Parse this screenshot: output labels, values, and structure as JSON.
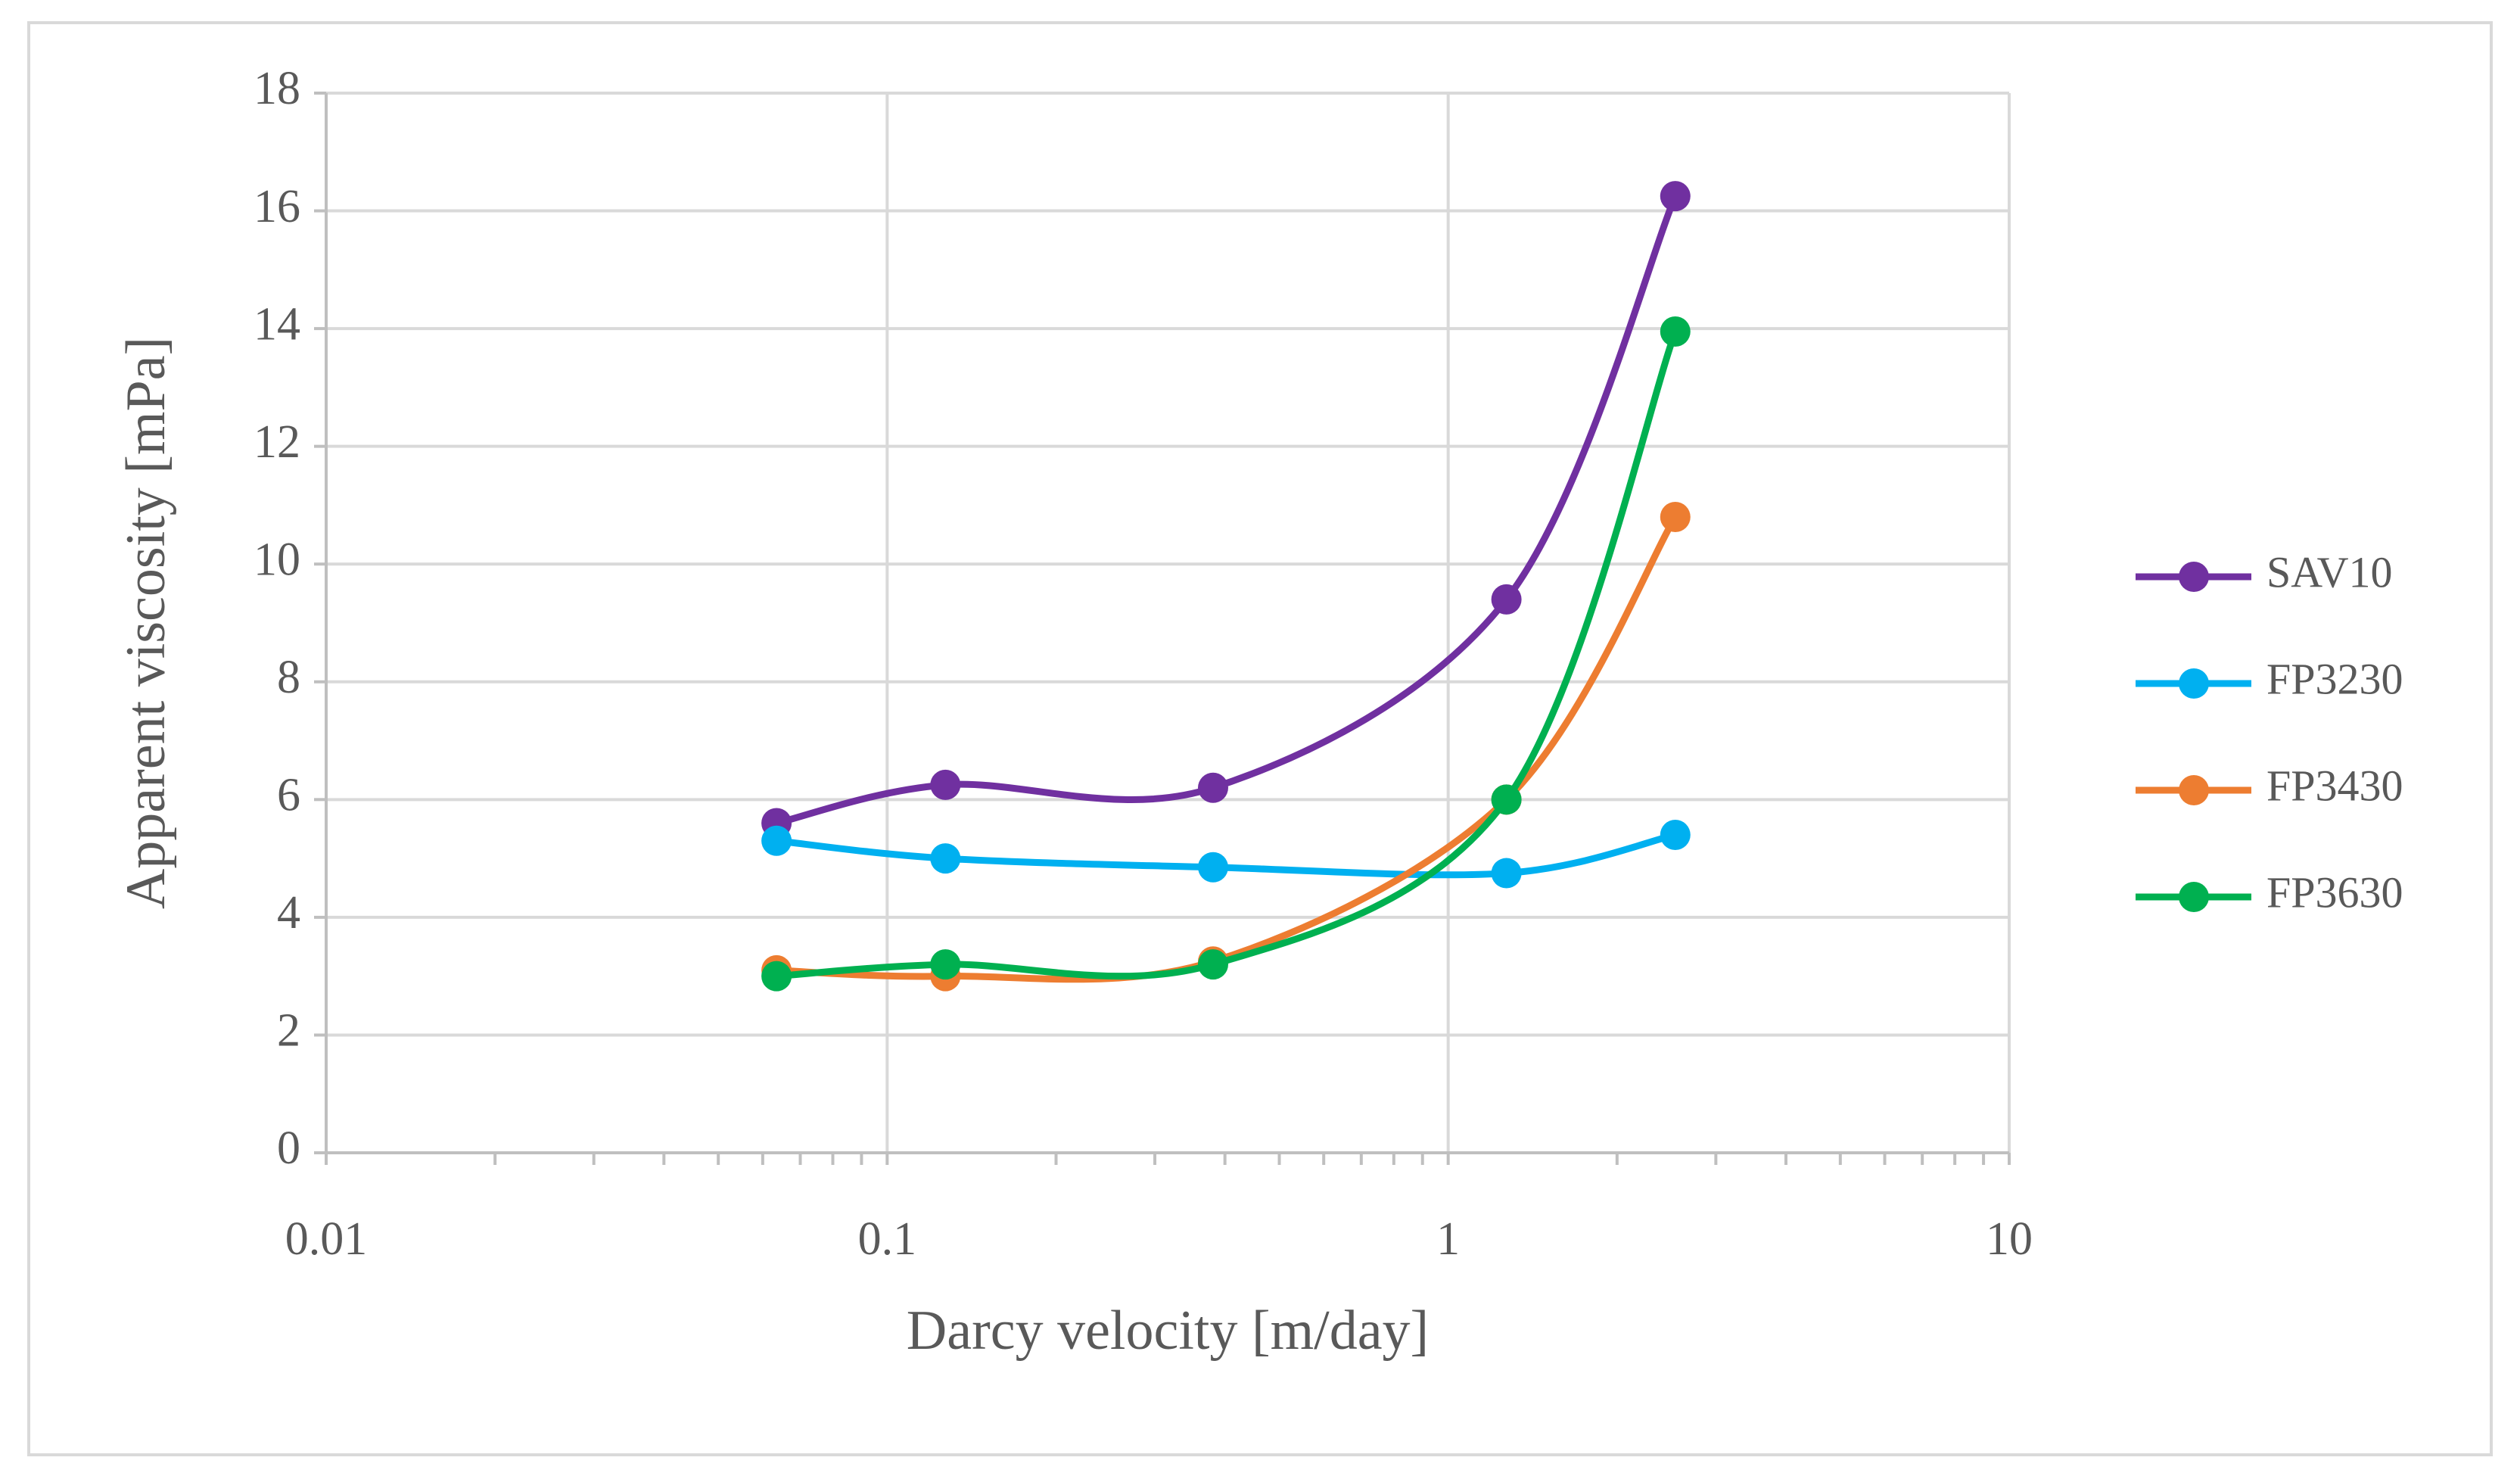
{
  "chart_data": {
    "type": "line",
    "x_label": "Darcy velocity [m/day]",
    "y_label": "Apparent viscosity [mPa]",
    "x_scale": "log",
    "x": [
      0.0635,
      0.127,
      0.381,
      1.27,
      2.54
    ],
    "xlim": [
      0.01,
      10
    ],
    "xticks": [
      0.01,
      0.1,
      1,
      10
    ],
    "ylim": [
      0,
      18
    ],
    "yticks": [
      0,
      2,
      4,
      6,
      8,
      10,
      12,
      14,
      16,
      18
    ],
    "grid": true,
    "smooth": true,
    "legend": "right",
    "series": [
      {
        "name": "SAV10",
        "color": "#7030a0",
        "values": [
          5.6,
          6.25,
          6.2,
          9.4,
          16.25
        ]
      },
      {
        "name": "FP3230",
        "color": "#00b0f0",
        "values": [
          5.3,
          5.0,
          4.85,
          4.75,
          5.4
        ]
      },
      {
        "name": "FP3430",
        "color": "#ed7d31",
        "values": [
          3.1,
          3.0,
          3.25,
          6.0,
          10.8
        ]
      },
      {
        "name": "FP3630",
        "color": "#00b050",
        "values": [
          3.0,
          3.2,
          3.2,
          6.0,
          13.95
        ]
      }
    ]
  }
}
